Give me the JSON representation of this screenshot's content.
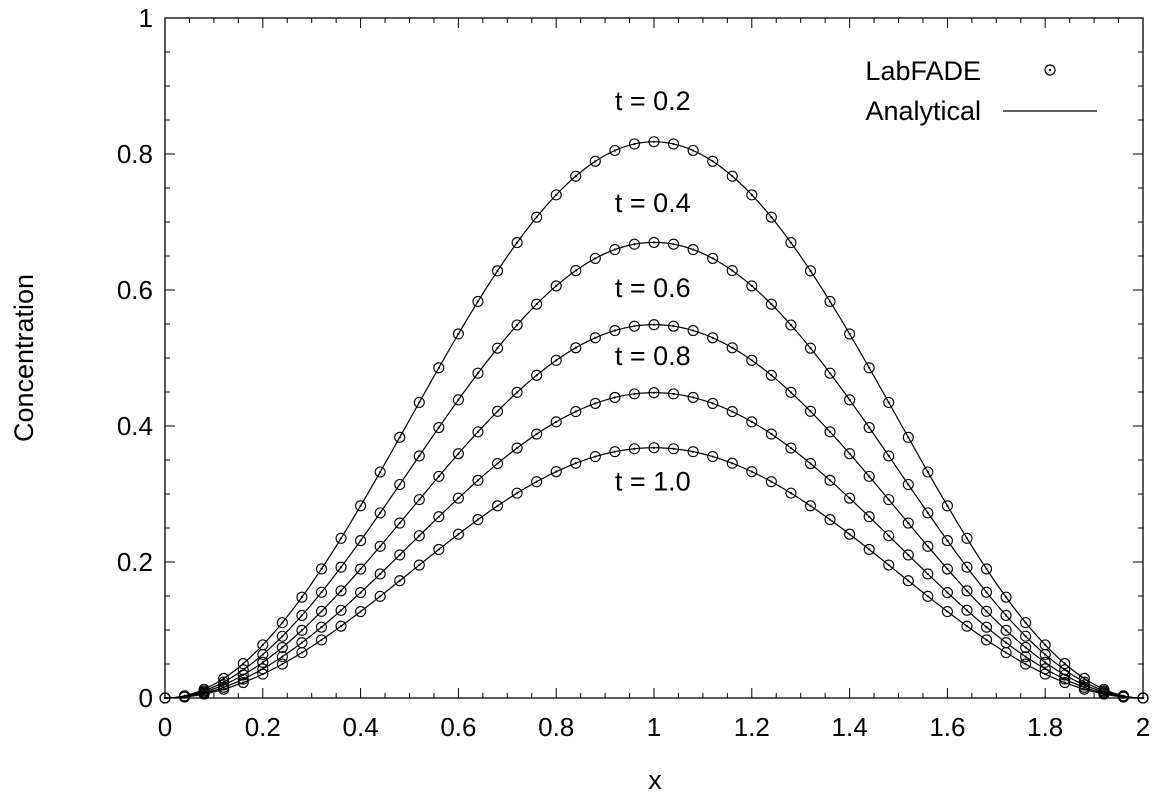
{
  "chart_data": {
    "type": "line",
    "title": "",
    "xlabel": "x",
    "ylabel": "Concentration",
    "xlim": [
      0,
      2
    ],
    "ylim": [
      0,
      1
    ],
    "xticks": [
      "0",
      "0.2",
      "0.4",
      "0.6",
      "0.8",
      "1",
      "1.2",
      "1.4",
      "1.6",
      "1.8",
      "2"
    ],
    "yticks": [
      "0",
      "0.2",
      "0.4",
      "0.6",
      "0.8",
      "1"
    ],
    "x_minor_step": 0.05,
    "y_minor_step": 0.05,
    "grid": false,
    "legend": {
      "position": "top-right",
      "entries": [
        {
          "label": "LabFADE",
          "marker": "open-circle"
        },
        {
          "label": "Analytical",
          "marker": "line"
        }
      ]
    },
    "curve_model": "peak * sin^2(pi * x / 2)",
    "marker_x_step": 0.04,
    "series": [
      {
        "label": "t = 0.2",
        "peak": 0.818,
        "label_x": 0.92,
        "label_y": 0.865
      },
      {
        "label": "t = 0.4",
        "peak": 0.67,
        "label_x": 0.92,
        "label_y": 0.715
      },
      {
        "label": "t = 0.6",
        "peak": 0.549,
        "label_x": 0.92,
        "label_y": 0.59
      },
      {
        "label": "t = 0.8",
        "peak": 0.449,
        "label_x": 0.92,
        "label_y": 0.49
      },
      {
        "label": "t = 1.0",
        "peak": 0.368,
        "label_x": 0.92,
        "label_y": 0.305
      }
    ]
  }
}
